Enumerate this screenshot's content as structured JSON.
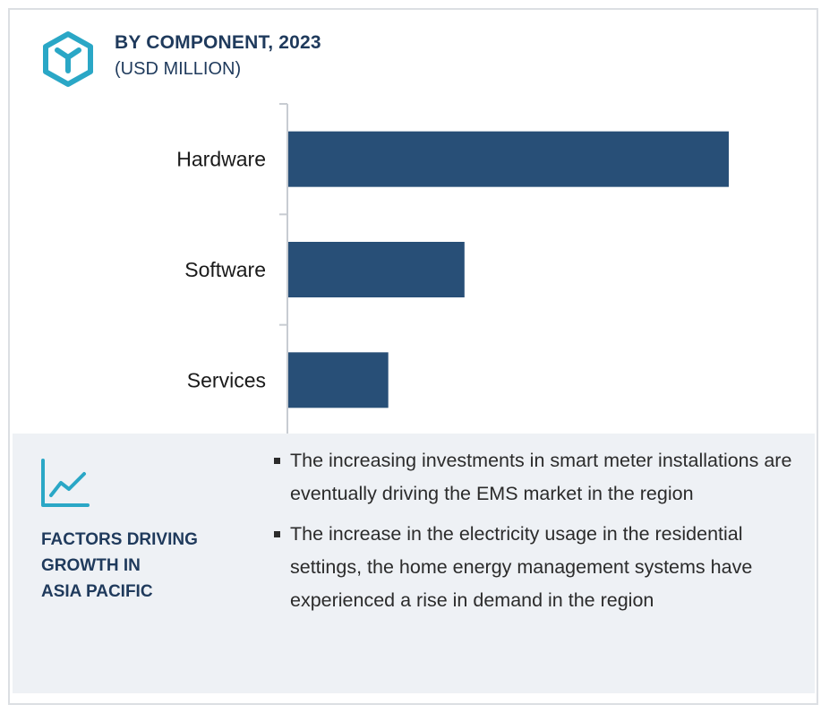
{
  "header": {
    "title": "BY COMPONENT, 2023",
    "subtitle": "(USD MILLION)",
    "icon": "cube-icon"
  },
  "colors": {
    "bar": "#284f77",
    "title": "#1f3a5c",
    "accent": "#2aa7c6",
    "panel": "#eef1f5"
  },
  "chart_data": {
    "type": "bar",
    "orientation": "horizontal",
    "title": "BY COMPONENT, 2023",
    "subtitle": "(USD MILLION)",
    "categories": [
      "Hardware",
      "Software",
      "Services"
    ],
    "values": [
      100,
      40,
      22.7
    ],
    "xlim": [
      0,
      100
    ],
    "value_axis_visible": false,
    "grid": false,
    "legend": "none"
  },
  "factors": {
    "icon": "trend-line-icon",
    "title_lines": [
      "FACTORS DRIVING",
      "GROWTH IN",
      "ASIA PACIFIC"
    ],
    "bullets": [
      "The increasing investments in smart meter installations are eventually driving the EMS market in the region",
      "The increase in the electricity usage in the residential settings, the home energy management systems have experienced a rise in demand in the region"
    ]
  }
}
